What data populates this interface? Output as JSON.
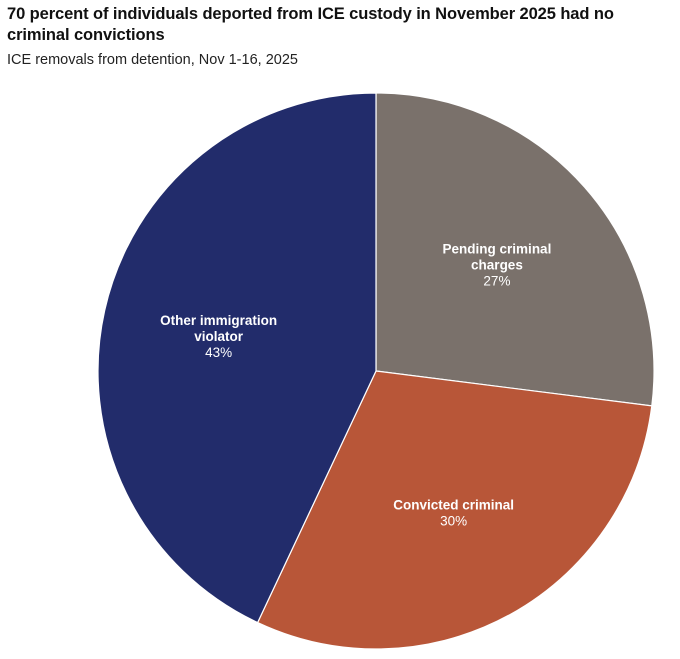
{
  "title": "70 percent of individuals deported from ICE custody in November 2025 had no criminal convictions",
  "subtitle": "ICE removals from detention, Nov 1-16, 2025",
  "chart_data": {
    "type": "pie",
    "title": "70 percent of individuals deported from ICE custody in November 2025 had no criminal convictions",
    "subtitle": "ICE removals from detention, Nov 1-16, 2025",
    "start_angle_deg": 0,
    "direction": "clockwise",
    "slices": [
      {
        "label_lines": [
          "Pending criminal",
          "charges"
        ],
        "value": 27,
        "value_label": "27%",
        "color": "#7a716b"
      },
      {
        "label_lines": [
          "Convicted criminal"
        ],
        "value": 30,
        "value_label": "30%",
        "color": "#b85638"
      },
      {
        "label_lines": [
          "Other immigration",
          "violator"
        ],
        "value": 43,
        "value_label": "43%",
        "color": "#222c6b"
      }
    ]
  }
}
